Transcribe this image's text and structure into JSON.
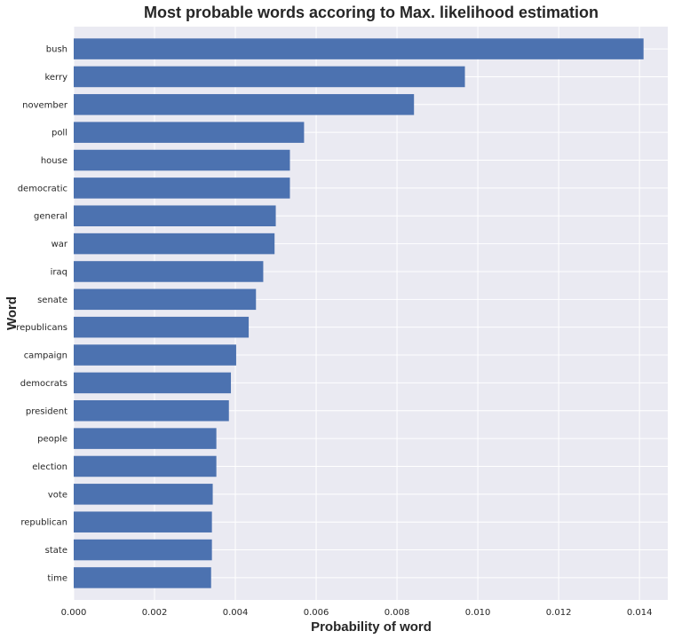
{
  "chart_data": {
    "type": "bar",
    "orientation": "horizontal",
    "title": "Most probable words accoring to Max. likelihood estimation",
    "xlabel": "Probability of word",
    "ylabel": "Word",
    "categories": [
      "bush",
      "kerry",
      "november",
      "poll",
      "house",
      "democratic",
      "general",
      "war",
      "iraq",
      "senate",
      "republicans",
      "campaign",
      "democrats",
      "president",
      "people",
      "election",
      "vote",
      "republican",
      "state",
      "time"
    ],
    "values": [
      0.0141,
      0.00968,
      0.00842,
      0.0057,
      0.00535,
      0.00535,
      0.005,
      0.00497,
      0.00469,
      0.00451,
      0.00433,
      0.00402,
      0.00389,
      0.00384,
      0.00353,
      0.00353,
      0.00344,
      0.00342,
      0.00342,
      0.0034
    ],
    "xlim": [
      0,
      0.0147
    ],
    "xticks": [
      "0.000",
      "0.002",
      "0.004",
      "0.006",
      "0.008",
      "0.010",
      "0.012",
      "0.014"
    ],
    "grid": true,
    "bar_color": "#4c72b0",
    "background_color": "#eaeaf2",
    "grid_color": "#ffffff"
  }
}
